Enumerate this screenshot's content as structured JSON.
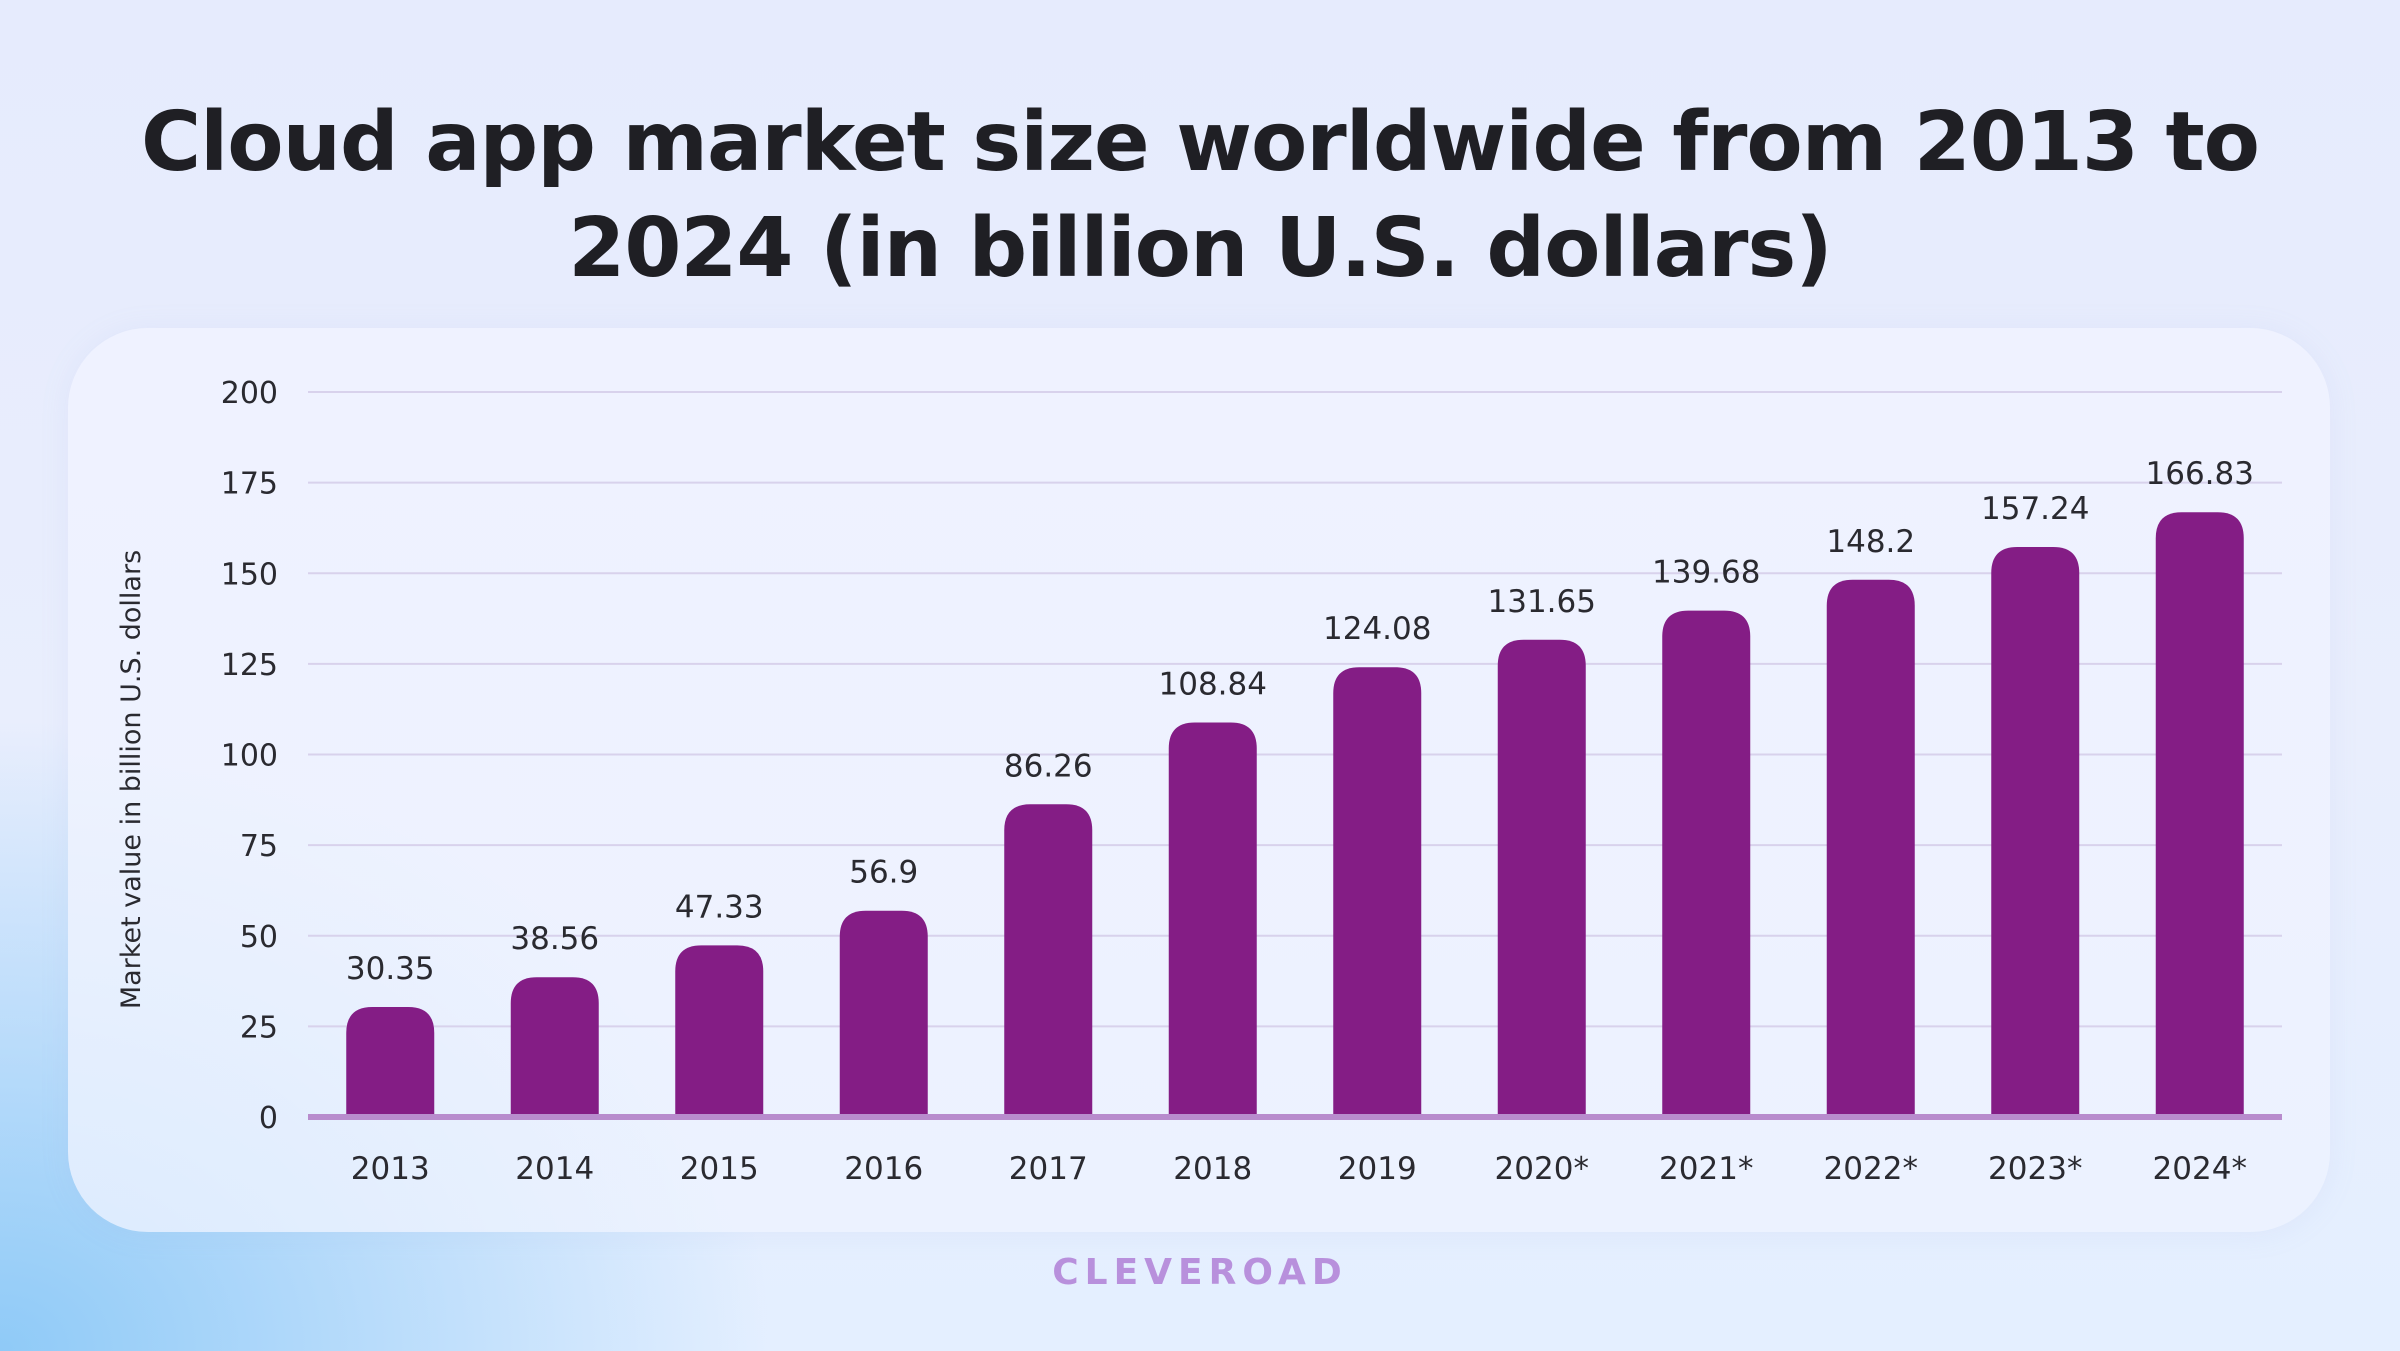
{
  "title": "Cloud app market size worldwide from 2013 to 2024 (in billion U.S. dollars)",
  "brand": "CLEVEROAD",
  "colors": {
    "bar": "#841d85",
    "baseline": "#b88ccd",
    "grid": "#d8d2ec",
    "text": "#2a2a30",
    "brand": "#b890dc"
  },
  "chart_data": {
    "type": "bar",
    "title": "Cloud app market size worldwide from 2013 to 2024 (in billion U.S. dollars)",
    "xlabel": "",
    "ylabel": "Market value in billion U.S. dollars",
    "categories": [
      "2013",
      "2014",
      "2015",
      "2016",
      "2017",
      "2018",
      "2019",
      "2020*",
      "2021*",
      "2022*",
      "2023*",
      "2024*"
    ],
    "values": [
      30.35,
      38.56,
      47.33,
      56.9,
      86.26,
      108.84,
      124.08,
      131.65,
      139.68,
      148.2,
      157.24,
      166.83
    ],
    "value_labels": [
      "30.35",
      "38.56",
      "47.33",
      "56.9",
      "86.26",
      "108.84",
      "124.08",
      "131.65",
      "139.68",
      "148.2",
      "157.24",
      "166.83"
    ],
    "ylim": [
      0,
      200
    ],
    "yticks": [
      0,
      25,
      50,
      75,
      100,
      125,
      150,
      175,
      200
    ],
    "grid": true
  }
}
